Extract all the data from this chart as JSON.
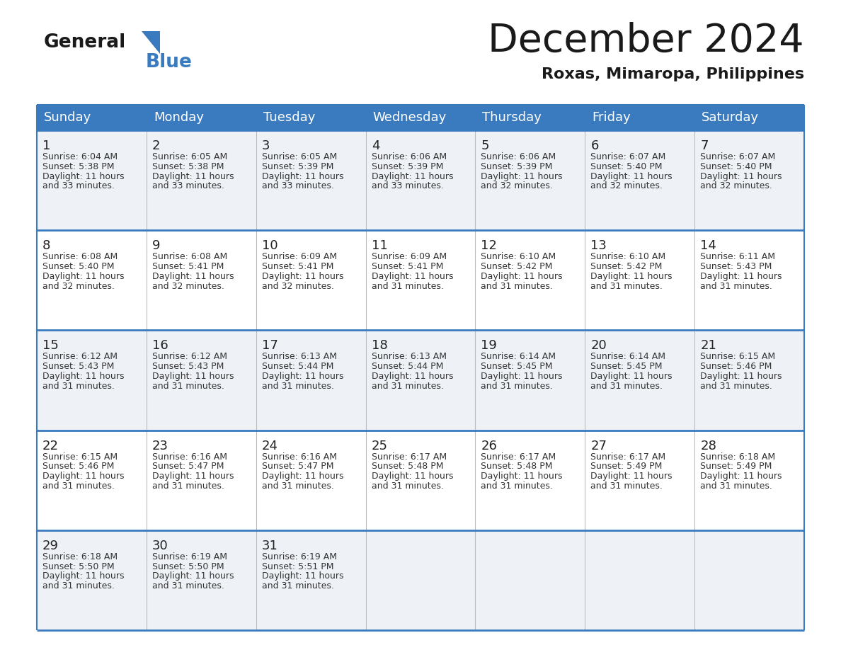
{
  "title": "December 2024",
  "subtitle": "Roxas, Mimaropa, Philippines",
  "header_color": "#3a7bbf",
  "header_text_color": "#ffffff",
  "cell_bg_even": "#eef2f7",
  "cell_bg_odd": "#ffffff",
  "border_color": "#3a7bbf",
  "separator_color": "#3a7bbf",
  "text_color": "#333333",
  "day_num_color": "#222222",
  "days_of_week": [
    "Sunday",
    "Monday",
    "Tuesday",
    "Wednesday",
    "Thursday",
    "Friday",
    "Saturday"
  ],
  "calendar_data": [
    [
      {
        "day": 1,
        "sunrise": "6:04 AM",
        "sunset": "5:38 PM",
        "dl1": "Daylight: 11 hours",
        "dl2": "and 33 minutes."
      },
      {
        "day": 2,
        "sunrise": "6:05 AM",
        "sunset": "5:38 PM",
        "dl1": "Daylight: 11 hours",
        "dl2": "and 33 minutes."
      },
      {
        "day": 3,
        "sunrise": "6:05 AM",
        "sunset": "5:39 PM",
        "dl1": "Daylight: 11 hours",
        "dl2": "and 33 minutes."
      },
      {
        "day": 4,
        "sunrise": "6:06 AM",
        "sunset": "5:39 PM",
        "dl1": "Daylight: 11 hours",
        "dl2": "and 33 minutes."
      },
      {
        "day": 5,
        "sunrise": "6:06 AM",
        "sunset": "5:39 PM",
        "dl1": "Daylight: 11 hours",
        "dl2": "and 32 minutes."
      },
      {
        "day": 6,
        "sunrise": "6:07 AM",
        "sunset": "5:40 PM",
        "dl1": "Daylight: 11 hours",
        "dl2": "and 32 minutes."
      },
      {
        "day": 7,
        "sunrise": "6:07 AM",
        "sunset": "5:40 PM",
        "dl1": "Daylight: 11 hours",
        "dl2": "and 32 minutes."
      }
    ],
    [
      {
        "day": 8,
        "sunrise": "6:08 AM",
        "sunset": "5:40 PM",
        "dl1": "Daylight: 11 hours",
        "dl2": "and 32 minutes."
      },
      {
        "day": 9,
        "sunrise": "6:08 AM",
        "sunset": "5:41 PM",
        "dl1": "Daylight: 11 hours",
        "dl2": "and 32 minutes."
      },
      {
        "day": 10,
        "sunrise": "6:09 AM",
        "sunset": "5:41 PM",
        "dl1": "Daylight: 11 hours",
        "dl2": "and 32 minutes."
      },
      {
        "day": 11,
        "sunrise": "6:09 AM",
        "sunset": "5:41 PM",
        "dl1": "Daylight: 11 hours",
        "dl2": "and 31 minutes."
      },
      {
        "day": 12,
        "sunrise": "6:10 AM",
        "sunset": "5:42 PM",
        "dl1": "Daylight: 11 hours",
        "dl2": "and 31 minutes."
      },
      {
        "day": 13,
        "sunrise": "6:10 AM",
        "sunset": "5:42 PM",
        "dl1": "Daylight: 11 hours",
        "dl2": "and 31 minutes."
      },
      {
        "day": 14,
        "sunrise": "6:11 AM",
        "sunset": "5:43 PM",
        "dl1": "Daylight: 11 hours",
        "dl2": "and 31 minutes."
      }
    ],
    [
      {
        "day": 15,
        "sunrise": "6:12 AM",
        "sunset": "5:43 PM",
        "dl1": "Daylight: 11 hours",
        "dl2": "and 31 minutes."
      },
      {
        "day": 16,
        "sunrise": "6:12 AM",
        "sunset": "5:43 PM",
        "dl1": "Daylight: 11 hours",
        "dl2": "and 31 minutes."
      },
      {
        "day": 17,
        "sunrise": "6:13 AM",
        "sunset": "5:44 PM",
        "dl1": "Daylight: 11 hours",
        "dl2": "and 31 minutes."
      },
      {
        "day": 18,
        "sunrise": "6:13 AM",
        "sunset": "5:44 PM",
        "dl1": "Daylight: 11 hours",
        "dl2": "and 31 minutes."
      },
      {
        "day": 19,
        "sunrise": "6:14 AM",
        "sunset": "5:45 PM",
        "dl1": "Daylight: 11 hours",
        "dl2": "and 31 minutes."
      },
      {
        "day": 20,
        "sunrise": "6:14 AM",
        "sunset": "5:45 PM",
        "dl1": "Daylight: 11 hours",
        "dl2": "and 31 minutes."
      },
      {
        "day": 21,
        "sunrise": "6:15 AM",
        "sunset": "5:46 PM",
        "dl1": "Daylight: 11 hours",
        "dl2": "and 31 minutes."
      }
    ],
    [
      {
        "day": 22,
        "sunrise": "6:15 AM",
        "sunset": "5:46 PM",
        "dl1": "Daylight: 11 hours",
        "dl2": "and 31 minutes."
      },
      {
        "day": 23,
        "sunrise": "6:16 AM",
        "sunset": "5:47 PM",
        "dl1": "Daylight: 11 hours",
        "dl2": "and 31 minutes."
      },
      {
        "day": 24,
        "sunrise": "6:16 AM",
        "sunset": "5:47 PM",
        "dl1": "Daylight: 11 hours",
        "dl2": "and 31 minutes."
      },
      {
        "day": 25,
        "sunrise": "6:17 AM",
        "sunset": "5:48 PM",
        "dl1": "Daylight: 11 hours",
        "dl2": "and 31 minutes."
      },
      {
        "day": 26,
        "sunrise": "6:17 AM",
        "sunset": "5:48 PM",
        "dl1": "Daylight: 11 hours",
        "dl2": "and 31 minutes."
      },
      {
        "day": 27,
        "sunrise": "6:17 AM",
        "sunset": "5:49 PM",
        "dl1": "Daylight: 11 hours",
        "dl2": "and 31 minutes."
      },
      {
        "day": 28,
        "sunrise": "6:18 AM",
        "sunset": "5:49 PM",
        "dl1": "Daylight: 11 hours",
        "dl2": "and 31 minutes."
      }
    ],
    [
      {
        "day": 29,
        "sunrise": "6:18 AM",
        "sunset": "5:50 PM",
        "dl1": "Daylight: 11 hours",
        "dl2": "and 31 minutes."
      },
      {
        "day": 30,
        "sunrise": "6:19 AM",
        "sunset": "5:50 PM",
        "dl1": "Daylight: 11 hours",
        "dl2": "and 31 minutes."
      },
      {
        "day": 31,
        "sunrise": "6:19 AM",
        "sunset": "5:51 PM",
        "dl1": "Daylight: 11 hours",
        "dl2": "and 31 minutes."
      },
      null,
      null,
      null,
      null
    ]
  ],
  "logo_general_color": "#1a1a1a",
  "logo_blue_color": "#3a7bbf",
  "logo_triangle_color": "#3a7bbf",
  "title_fontsize": 40,
  "subtitle_fontsize": 16,
  "header_fontsize": 13,
  "day_num_fontsize": 13,
  "cell_text_fontsize": 9
}
